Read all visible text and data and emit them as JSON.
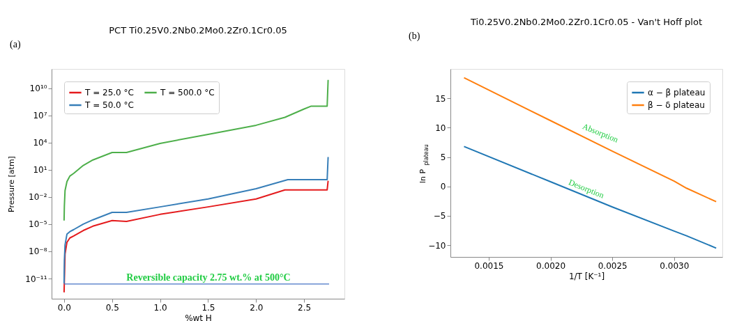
{
  "chart_data": [
    {
      "type": "line",
      "title": "PCT Ti0.25V0.2Nb0.2Mo0.2Zr0.1Cr0.05",
      "xlabel": "%wt H",
      "ylabel": "Pressure [atm]",
      "log": "y",
      "xlim": [
        -0.13,
        2.92
      ],
      "xticks": [
        {
          "value": 0,
          "label": "0.0"
        },
        0.5,
        {
          "value": 1,
          "label": "1.0"
        },
        1.5,
        {
          "value": 2,
          "label": "2.0"
        },
        2.5
      ],
      "ylim": [
        6e-14,
        1300000000000.0
      ],
      "yticks": [
        {
          "value": 1e-11,
          "label": "10⁻¹¹"
        },
        {
          "value": 1e-08,
          "label": "10⁻⁸"
        },
        {
          "value": 1e-05,
          "label": "10⁻⁵"
        },
        {
          "value": 0.01,
          "label": "10⁻²"
        },
        {
          "value": 10,
          "label": "10¹"
        },
        {
          "value": 10000,
          "label": "10⁴"
        },
        {
          "value": 10000000.0,
          "label": "10⁷"
        },
        {
          "value": 10000000000.0,
          "label": "10¹⁰"
        }
      ],
      "grid": false,
      "legend": "top left",
      "series": [
        {
          "name": "T = 25.0 °C",
          "color": "#e41a1c",
          "x": [
            0,
            0.01,
            0.03,
            0.06,
            0.1,
            0.2,
            0.3,
            0.5,
            0.65,
            1.0,
            1.5,
            2.0,
            2.3,
            2.74,
            2.75
          ],
          "values": [
            3e-13,
            5e-09,
            1e-07,
            3e-07,
            5e-07,
            2e-06,
            6e-06,
            2.5e-05,
            2e-05,
            0.00012,
            0.0008,
            0.006,
            0.06,
            0.06,
            0.6
          ]
        },
        {
          "name": "T = 50.0 °C",
          "color": "#377eb8",
          "x": [
            0,
            0.003,
            0.01,
            0.03,
            0.06,
            0.1,
            0.2,
            0.3,
            0.5,
            0.65,
            1.0,
            1.5,
            2.0,
            2.33,
            2.74,
            2.75
          ],
          "values": [
            3e-12,
            1e-09,
            5e-08,
            8e-07,
            1.5e-06,
            2.5e-06,
            1e-05,
            3e-05,
            0.0002,
            0.0002,
            0.0008,
            0.006,
            0.08,
            0.8,
            0.8,
            250
          ]
        },
        {
          "name": "T = 500.0 °C",
          "color": "#4daf4a",
          "x": [
            0,
            0.003,
            0.01,
            0.03,
            0.06,
            0.1,
            0.2,
            0.3,
            0.5,
            0.65,
            1.0,
            1.5,
            2.0,
            2.3,
            2.5,
            2.57,
            2.74,
            2.75
          ],
          "values": [
            2.5e-05,
            0.001,
            0.05,
            0.5,
            2,
            4,
            30,
            120,
            800,
            800,
            8000,
            80000,
            800000,
            6000000.0,
            50000000.0,
            100000000.0,
            100000000.0,
            80000000000.0
          ]
        },
        {
          "color": "#4472c4",
          "x": [
            0,
            2.76
          ],
          "values": [
            2.5e-12,
            2.5e-12
          ]
        }
      ],
      "annotations": [
        "(a)",
        "Reversible capacity 2.75 wt.% at 500°C"
      ]
    },
    {
      "type": "line",
      "title": "Ti0.25V0.2Nb0.2Mo0.2Zr0.1Cr0.05 - Van't Hoff plot",
      "xlabel": "1/T [K⁻¹]",
      "ylabel": "ln P$_{plateau}$",
      "xlim": [
        0.00119,
        0.00339
      ],
      "xticks": [
        0.0015,
        {
          "value": 0.002,
          "label": "0.0020"
        },
        0.0025,
        {
          "value": 0.003,
          "label": "0.0030"
        }
      ],
      "ylim": [
        -12,
        20
      ],
      "yticks": [
        -10,
        -5,
        0,
        5,
        10,
        15
      ],
      "grid": false,
      "legend": "top right",
      "series": [
        {
          "name": "α − β plateau",
          "color": "#1f77b4",
          "x": [
            0.0013,
            0.002,
            0.0025,
            0.003,
            0.0031,
            0.00334
          ],
          "values": [
            6.8,
            0.8,
            -3.5,
            -7.6,
            -8.4,
            -10.5
          ]
        },
        {
          "name": "β − δ plateau",
          "color": "#ff7f0e",
          "x": [
            0.0013,
            0.002,
            0.0025,
            0.003,
            0.0031,
            0.00334
          ],
          "values": [
            18.5,
            11.2,
            6.0,
            0.9,
            -0.3,
            -2.6
          ]
        }
      ],
      "annotations": [
        "(b)",
        "Absorption",
        "Desorption"
      ]
    }
  ]
}
